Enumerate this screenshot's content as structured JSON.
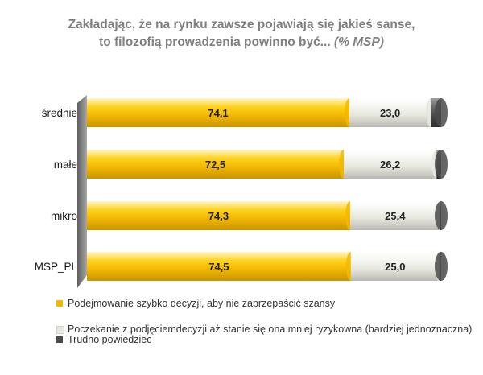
{
  "title": {
    "line1": "Zakładając, że na rynku zawsze pojawiają się jakieś sanse,",
    "line2": "to filozofią prowadzenia powinno być...",
    "unit": "(% MSP)"
  },
  "colors": {
    "series": [
      "#f2b800",
      "#e8e8e2",
      "#4a4a4a"
    ],
    "wall": "#8c8c8c"
  },
  "chart_data": {
    "type": "bar",
    "orientation": "horizontal",
    "stacked": true,
    "style": "3d-cylinder",
    "title": "Zakładając, że na rynku zawsze pojawiają się jakieś sanse, to filozofią prowadzenia powinno być... (% MSP)",
    "categories": [
      "średnie",
      "małe",
      "mikro",
      "MSP_PL"
    ],
    "series": [
      {
        "name": "Podejmowanie szybko decyzji, aby nie zaprzepaścić szansy",
        "values": [
          74.1,
          72.5,
          74.3,
          74.5
        ],
        "labels": [
          "74,1",
          "72,5",
          "74,3",
          "74,5"
        ]
      },
      {
        "name": "Poczekanie z podjęciemdecyzji aż stanie się ona mniej ryzykowna (bardziej jednoznaczna)",
        "values": [
          23.0,
          26.2,
          25.4,
          25.0
        ],
        "labels": [
          "23,0",
          "26,2",
          "25,4",
          "25,0"
        ]
      },
      {
        "name": "Trudno powiedziec",
        "values": [
          2.9,
          1.3,
          0.3,
          0.5
        ],
        "labels": [
          "",
          "",
          "",
          ""
        ]
      }
    ],
    "xlim": [
      0,
      100
    ],
    "grid": false,
    "legend": "bottom"
  }
}
